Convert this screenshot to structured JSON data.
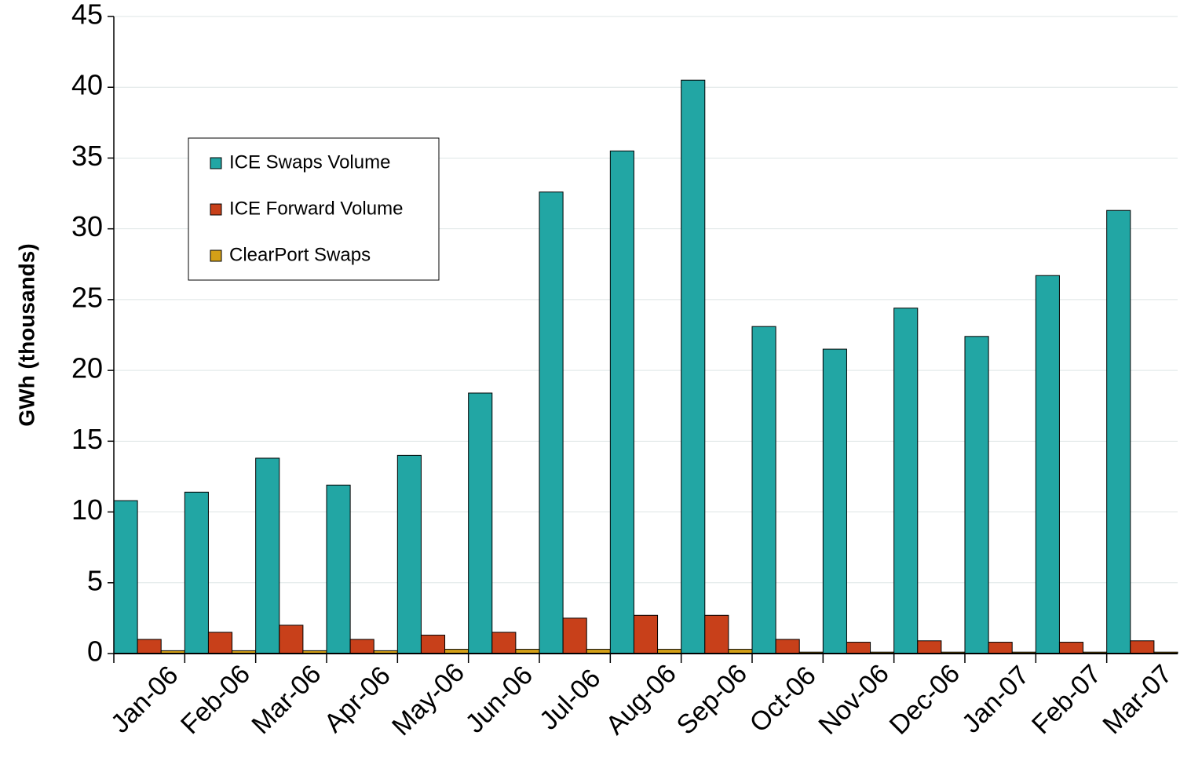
{
  "chart_data": {
    "type": "bar",
    "y_label": "GWh (thousands)",
    "categories": [
      "Jan-06",
      "Feb-06",
      "Mar-06",
      "Apr-06",
      "May-06",
      "Jun-06",
      "Jul-06",
      "Aug-06",
      "Sep-06",
      "Oct-06",
      "Nov-06",
      "Dec-06",
      "Jan-07",
      "Feb-07",
      "Mar-07"
    ],
    "series": [
      {
        "name": "ICE Swaps Volume",
        "color": "#22a6a4",
        "values": [
          10.8,
          11.4,
          13.8,
          11.9,
          14.0,
          18.4,
          32.6,
          35.5,
          40.5,
          23.1,
          21.5,
          24.4,
          22.4,
          26.7,
          31.3
        ]
      },
      {
        "name": "ICE Forward Volume",
        "color": "#c8401a",
        "values": [
          1.0,
          1.5,
          2.0,
          1.0,
          1.3,
          1.5,
          2.5,
          2.7,
          2.7,
          1.0,
          0.8,
          0.9,
          0.8,
          0.8,
          0.9
        ]
      },
      {
        "name": "ClearPort Swaps",
        "color": "#d4a017",
        "values": [
          0.2,
          0.2,
          0.2,
          0.2,
          0.3,
          0.3,
          0.3,
          0.3,
          0.3,
          0.1,
          0.1,
          0.1,
          0.1,
          0.1,
          0.1
        ]
      }
    ],
    "ylim": [
      0,
      45
    ],
    "yticks": [
      0,
      5,
      10,
      15,
      20,
      25,
      30,
      35,
      40,
      45
    ],
    "grid": true,
    "legend": "upper left"
  }
}
